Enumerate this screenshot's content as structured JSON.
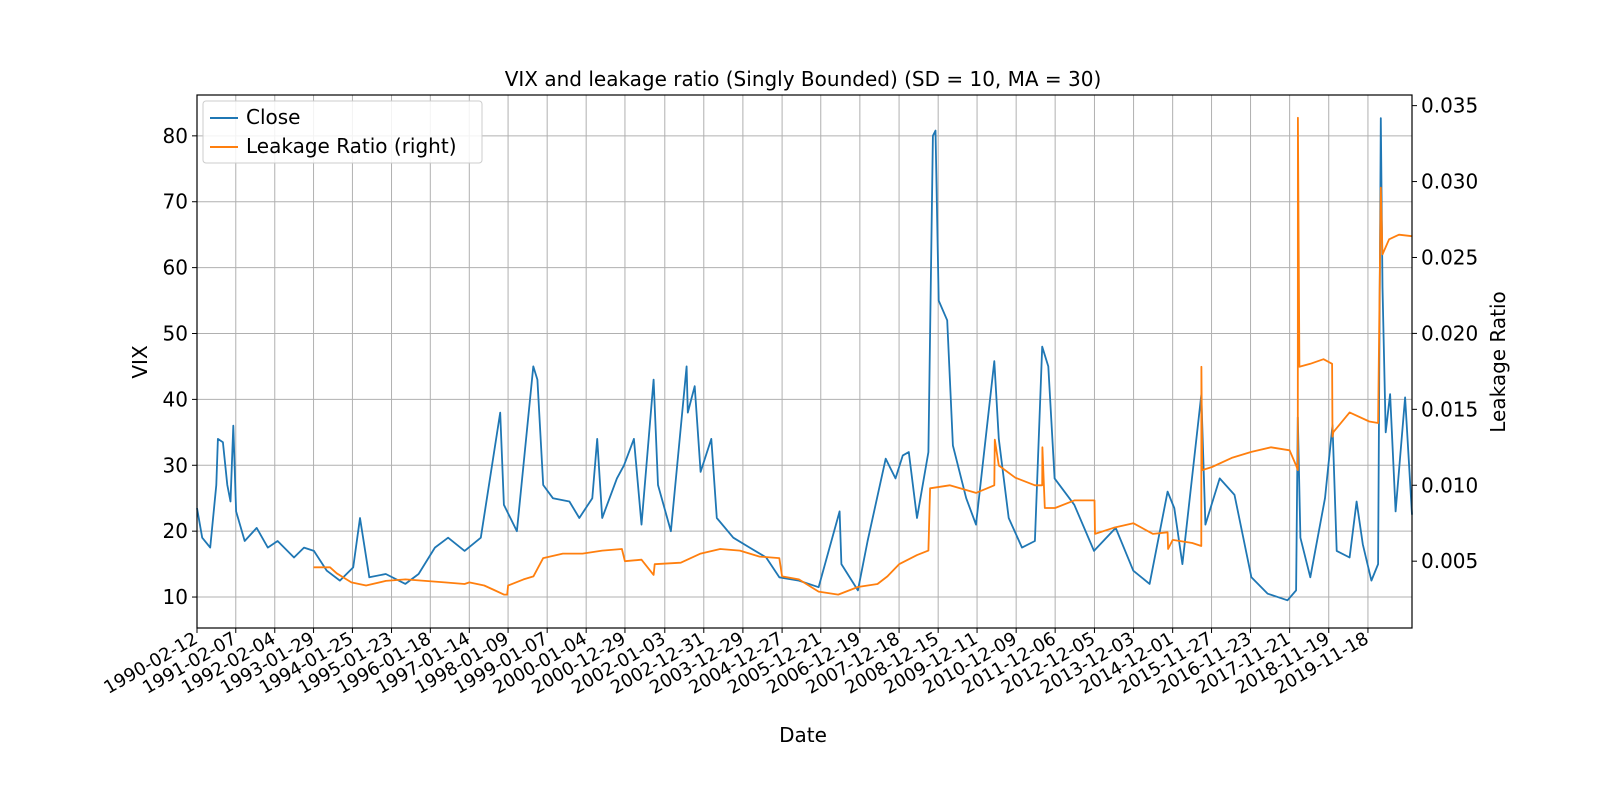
{
  "chart_data": {
    "type": "line",
    "title": "VIX and leakage ratio (Singly Bounded) (SD = 10, MA = 30)",
    "xlabel": "Date",
    "ylabel": "VIX",
    "ylabel_right": "Leakage Ratio",
    "x_range": [
      "1990-02-12",
      "2020-12-31"
    ],
    "xticks": [
      "1990-02-12",
      "1991-02-07",
      "1992-02-04",
      "1993-01-29",
      "1994-01-25",
      "1995-01-23",
      "1996-01-18",
      "1997-01-14",
      "1998-01-09",
      "1999-01-07",
      "2000-01-04",
      "2000-12-29",
      "2002-01-03",
      "2002-12-31",
      "2003-12-29",
      "2004-12-27",
      "2005-12-21",
      "2006-12-19",
      "2007-12-18",
      "2008-12-15",
      "2009-12-11",
      "2010-12-09",
      "2011-12-06",
      "2012-12-05",
      "2013-12-03",
      "2014-12-01",
      "2015-11-27",
      "2016-11-23",
      "2017-11-21",
      "2018-11-19",
      "2019-11-18"
    ],
    "ylim": [
      5.3,
      86.2
    ],
    "yticks": [
      10,
      20,
      30,
      40,
      50,
      60,
      70,
      80
    ],
    "ylim_right": [
      0.0006,
      0.0357
    ],
    "yticks_right": [
      "0.005",
      "0.010",
      "0.015",
      "0.020",
      "0.025",
      "0.030",
      "0.035"
    ],
    "grid": true,
    "legend_position": "top-left",
    "colors": {
      "close": "#1f77b4",
      "leakage": "#ff7f0e",
      "grid": "#b0b0b0"
    },
    "series": [
      {
        "name": "Close",
        "axis": "left",
        "points": [
          [
            "1990-02-12",
            23.5
          ],
          [
            "1990-04-01",
            19.0
          ],
          [
            "1990-06-15",
            17.5
          ],
          [
            "1990-08-10",
            27.0
          ],
          [
            "1990-08-25",
            34.0
          ],
          [
            "1990-10-10",
            33.5
          ],
          [
            "1990-11-20",
            27.0
          ],
          [
            "1990-12-20",
            24.5
          ],
          [
            "1991-01-15",
            36.0
          ],
          [
            "1991-02-10",
            23.0
          ],
          [
            "1991-05-01",
            18.5
          ],
          [
            "1991-08-20",
            20.5
          ],
          [
            "1991-12-01",
            17.5
          ],
          [
            "1992-03-01",
            18.5
          ],
          [
            "1992-08-01",
            16.0
          ],
          [
            "1992-11-01",
            17.5
          ],
          [
            "1993-02-01",
            17.0
          ],
          [
            "1993-06-01",
            14.0
          ],
          [
            "1993-10-01",
            12.5
          ],
          [
            "1994-02-01",
            14.5
          ],
          [
            "1994-04-05",
            22.0
          ],
          [
            "1994-07-01",
            13.0
          ],
          [
            "1994-12-01",
            13.5
          ],
          [
            "1995-06-01",
            12.0
          ],
          [
            "1995-10-01",
            13.5
          ],
          [
            "1996-03-01",
            17.5
          ],
          [
            "1996-07-01",
            19.0
          ],
          [
            "1996-12-01",
            17.0
          ],
          [
            "1997-05-01",
            19.0
          ],
          [
            "1997-10-28",
            38.0
          ],
          [
            "1997-12-01",
            24.0
          ],
          [
            "1998-04-01",
            20.0
          ],
          [
            "1998-08-31",
            45.0
          ],
          [
            "1998-10-08",
            43.0
          ],
          [
            "1998-12-01",
            27.0
          ],
          [
            "1999-03-01",
            25.0
          ],
          [
            "1999-08-01",
            24.5
          ],
          [
            "1999-11-01",
            22.0
          ],
          [
            "2000-03-01",
            25.0
          ],
          [
            "2000-04-15",
            34.0
          ],
          [
            "2000-06-01",
            22.0
          ],
          [
            "2000-10-15",
            28.0
          ],
          [
            "2000-12-20",
            30.0
          ],
          [
            "2001-03-22",
            34.0
          ],
          [
            "2001-06-01",
            21.0
          ],
          [
            "2001-09-21",
            43.0
          ],
          [
            "2001-11-01",
            27.0
          ],
          [
            "2002-03-01",
            20.0
          ],
          [
            "2002-07-24",
            45.0
          ],
          [
            "2002-08-05",
            38.0
          ],
          [
            "2002-10-08",
            42.0
          ],
          [
            "2002-12-01",
            29.0
          ],
          [
            "2003-03-11",
            34.0
          ],
          [
            "2003-05-01",
            22.0
          ],
          [
            "2003-10-01",
            19.0
          ],
          [
            "2004-03-01",
            17.5
          ],
          [
            "2004-08-01",
            16.0
          ],
          [
            "2004-12-01",
            13.0
          ],
          [
            "2005-06-01",
            12.5
          ],
          [
            "2005-12-01",
            11.5
          ],
          [
            "2006-06-14",
            23.0
          ],
          [
            "2006-07-01",
            15.0
          ],
          [
            "2006-12-01",
            11.0
          ],
          [
            "2007-03-01",
            18.5
          ],
          [
            "2007-08-16",
            31.0
          ],
          [
            "2007-11-15",
            28.0
          ],
          [
            "2008-01-22",
            31.5
          ],
          [
            "2008-03-17",
            32.0
          ],
          [
            "2008-06-01",
            22.0
          ],
          [
            "2008-09-15",
            32.0
          ],
          [
            "2008-10-27",
            80.0
          ],
          [
            "2008-11-20",
            80.8
          ],
          [
            "2008-12-20",
            55.0
          ],
          [
            "2009-03-09",
            52.0
          ],
          [
            "2009-05-01",
            33.0
          ],
          [
            "2009-09-01",
            25.0
          ],
          [
            "2009-12-01",
            21.0
          ],
          [
            "2010-05-20",
            45.8
          ],
          [
            "2010-07-01",
            34.0
          ],
          [
            "2010-10-01",
            22.0
          ],
          [
            "2011-02-01",
            17.5
          ],
          [
            "2011-06-01",
            18.5
          ],
          [
            "2011-08-08",
            48.0
          ],
          [
            "2011-10-03",
            45.0
          ],
          [
            "2011-12-01",
            28.0
          ],
          [
            "2012-06-01",
            24.0
          ],
          [
            "2012-12-01",
            17.0
          ],
          [
            "2013-06-20",
            20.5
          ],
          [
            "2013-12-01",
            14.0
          ],
          [
            "2014-05-01",
            12.0
          ],
          [
            "2014-10-15",
            26.0
          ],
          [
            "2014-12-16",
            23.5
          ],
          [
            "2015-03-01",
            15.0
          ],
          [
            "2015-08-24",
            40.7
          ],
          [
            "2015-10-01",
            21.0
          ],
          [
            "2016-02-11",
            28.0
          ],
          [
            "2016-06-27",
            25.5
          ],
          [
            "2016-12-01",
            13.0
          ],
          [
            "2017-05-01",
            10.5
          ],
          [
            "2017-11-01",
            9.5
          ],
          [
            "2018-01-20",
            11.0
          ],
          [
            "2018-02-05",
            37.3
          ],
          [
            "2018-03-01",
            19.0
          ],
          [
            "2018-06-01",
            13.0
          ],
          [
            "2018-10-15",
            25.0
          ],
          [
            "2018-12-24",
            36.1
          ],
          [
            "2019-02-01",
            17.0
          ],
          [
            "2019-06-01",
            16.0
          ],
          [
            "2019-08-05",
            24.5
          ],
          [
            "2019-10-01",
            18.0
          ],
          [
            "2019-12-20",
            12.5
          ],
          [
            "2020-02-20",
            15.0
          ],
          [
            "2020-03-16",
            82.7
          ],
          [
            "2020-04-01",
            57.0
          ],
          [
            "2020-05-01",
            35.0
          ],
          [
            "2020-06-11",
            40.8
          ],
          [
            "2020-08-01",
            23.0
          ],
          [
            "2020-10-28",
            40.3
          ],
          [
            "2020-12-31",
            22.5
          ]
        ]
      },
      {
        "name": "Leakage Ratio (right)",
        "axis": "right",
        "points": [
          [
            "1993-01-29",
            0.0046
          ],
          [
            "1993-07-01",
            0.0046
          ],
          [
            "1993-09-01",
            0.0042
          ],
          [
            "1993-12-01",
            0.0038
          ],
          [
            "1994-01-15",
            0.0036
          ],
          [
            "1994-06-01",
            0.0034
          ],
          [
            "1994-12-01",
            0.0037
          ],
          [
            "1995-06-01",
            0.0038
          ],
          [
            "1995-12-01",
            0.0037
          ],
          [
            "1996-06-01",
            0.0036
          ],
          [
            "1996-12-01",
            0.0035
          ],
          [
            "1997-01-14",
            0.0036
          ],
          [
            "1997-06-01",
            0.0034
          ],
          [
            "1997-09-01",
            0.0031
          ],
          [
            "1997-12-01",
            0.0028
          ],
          [
            "1998-01-01",
            0.0028
          ],
          [
            "1998-01-09",
            0.0034
          ],
          [
            "1998-06-01",
            0.0038
          ],
          [
            "1998-09-01",
            0.004
          ],
          [
            "1998-12-01",
            0.0052
          ],
          [
            "1999-06-01",
            0.0055
          ],
          [
            "1999-12-01",
            0.0055
          ],
          [
            "2000-06-01",
            0.0057
          ],
          [
            "2000-12-01",
            0.0058
          ],
          [
            "2000-12-29",
            0.005
          ],
          [
            "2001-06-01",
            0.0051
          ],
          [
            "2001-09-21",
            0.0041
          ],
          [
            "2001-10-01",
            0.0048
          ],
          [
            "2002-06-01",
            0.0049
          ],
          [
            "2002-12-01",
            0.0055
          ],
          [
            "2003-06-01",
            0.0058
          ],
          [
            "2003-12-01",
            0.0057
          ],
          [
            "2004-06-01",
            0.0053
          ],
          [
            "2004-12-01",
            0.0052
          ],
          [
            "2004-12-27",
            0.004
          ],
          [
            "2005-06-01",
            0.0038
          ],
          [
            "2005-12-01",
            0.003
          ],
          [
            "2006-06-01",
            0.0028
          ],
          [
            "2006-12-01",
            0.0033
          ],
          [
            "2007-06-01",
            0.0035
          ],
          [
            "2007-09-01",
            0.004
          ],
          [
            "2007-12-18",
            0.0048
          ],
          [
            "2008-06-01",
            0.0054
          ],
          [
            "2008-09-15",
            0.0057
          ],
          [
            "2008-10-01",
            0.0098
          ],
          [
            "2009-04-01",
            0.01
          ],
          [
            "2009-12-01",
            0.0095
          ],
          [
            "2010-05-20",
            0.01
          ],
          [
            "2010-05-25",
            0.013
          ],
          [
            "2010-07-01",
            0.0113
          ],
          [
            "2010-12-01",
            0.0105
          ],
          [
            "2011-06-01",
            0.01
          ],
          [
            "2011-08-08",
            0.01
          ],
          [
            "2011-08-10",
            0.0125
          ],
          [
            "2011-09-01",
            0.0085
          ],
          [
            "2011-12-06",
            0.0085
          ],
          [
            "2012-06-01",
            0.009
          ],
          [
            "2012-12-05",
            0.009
          ],
          [
            "2012-12-10",
            0.0068
          ],
          [
            "2013-06-01",
            0.0072
          ],
          [
            "2013-12-01",
            0.0075
          ],
          [
            "2014-06-01",
            0.0068
          ],
          [
            "2014-10-15",
            0.0069
          ],
          [
            "2014-10-20",
            0.0058
          ],
          [
            "2014-12-01",
            0.0064
          ],
          [
            "2015-06-01",
            0.0062
          ],
          [
            "2015-08-24",
            0.006
          ],
          [
            "2015-08-25",
            0.0178
          ],
          [
            "2015-09-01",
            0.011
          ],
          [
            "2015-12-01",
            0.0112
          ],
          [
            "2016-06-01",
            0.0118
          ],
          [
            "2016-12-01",
            0.0122
          ],
          [
            "2017-06-01",
            0.0125
          ],
          [
            "2017-11-21",
            0.0123
          ],
          [
            "2018-01-20",
            0.0113
          ],
          [
            "2018-02-05",
            0.011
          ],
          [
            "2018-02-06",
            0.0342
          ],
          [
            "2018-02-20",
            0.0178
          ],
          [
            "2018-06-01",
            0.018
          ],
          [
            "2018-10-01",
            0.0183
          ],
          [
            "2018-12-20",
            0.018
          ],
          [
            "2018-12-24",
            0.0132
          ],
          [
            "2019-01-01",
            0.0135
          ],
          [
            "2019-06-01",
            0.0148
          ],
          [
            "2019-12-01",
            0.0142
          ],
          [
            "2020-02-20",
            0.0141
          ],
          [
            "2020-03-16",
            0.0296
          ],
          [
            "2020-04-01",
            0.0252
          ],
          [
            "2020-06-01",
            0.0262
          ],
          [
            "2020-09-01",
            0.0265
          ],
          [
            "2020-12-31",
            0.0264
          ]
        ]
      }
    ]
  }
}
